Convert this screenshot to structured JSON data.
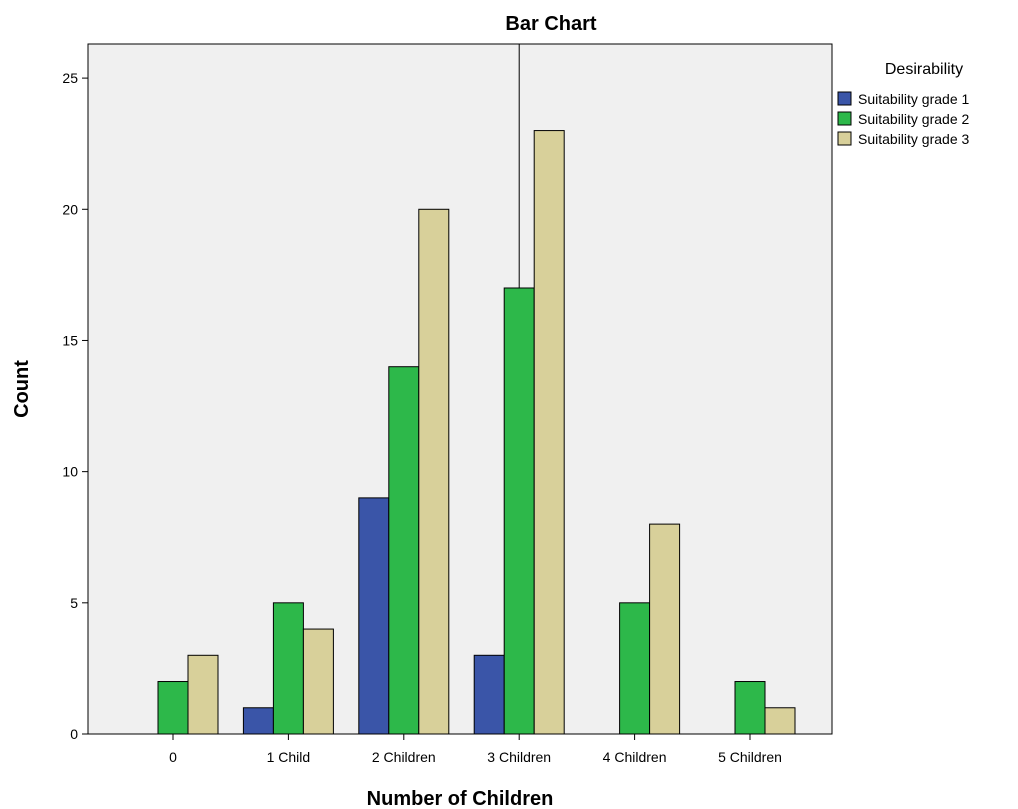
{
  "chart_data": {
    "type": "bar",
    "title": "Bar Chart",
    "xlabel": "Number of Children",
    "ylabel": "Count",
    "categories": [
      "0",
      "1 Child",
      "2 Children",
      "3 Children",
      "4 Children",
      "5 Children"
    ],
    "series": [
      {
        "name": "Suitability grade 1",
        "color": "#3a55a8",
        "values": [
          0,
          1,
          9,
          3,
          0,
          0
        ]
      },
      {
        "name": "Suitability grade 2",
        "color": "#2db84a",
        "values": [
          2,
          5,
          14,
          17,
          5,
          2
        ]
      },
      {
        "name": "Suitability grade 3",
        "color": "#d8d09a",
        "values": [
          3,
          4,
          20,
          23,
          8,
          1
        ]
      }
    ],
    "ylim": [
      0,
      26.3
    ],
    "yticks": [
      0,
      5,
      10,
      15,
      20,
      25
    ],
    "grid": false,
    "plot_background": "#f0f0f0",
    "reference_line_category": "3 Children",
    "legend": {
      "title": "Desirability",
      "placement": "right-top"
    }
  }
}
